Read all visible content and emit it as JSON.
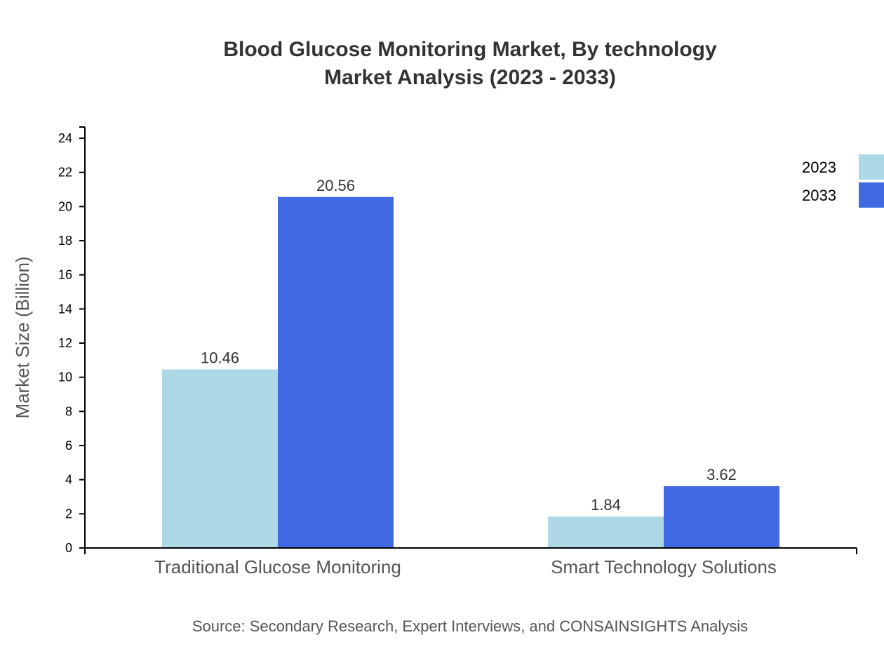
{
  "chart_data": {
    "type": "bar",
    "title": "Blood Glucose Monitoring Market, By technology",
    "subtitle": "Market Analysis (2023 - 2033)",
    "xlabel": "",
    "ylabel": "Market Size (Billion)",
    "categories": [
      "Traditional Glucose Monitoring",
      "Smart Technology Solutions"
    ],
    "series": [
      {
        "name": "2023",
        "color": "#add8e6",
        "values": [
          10.46,
          1.84
        ]
      },
      {
        "name": "2033",
        "color": "#4169e1",
        "values": [
          20.56,
          3.62
        ]
      }
    ],
    "ylim": [
      0,
      24.66
    ],
    "yticks": [
      0,
      2,
      4,
      6,
      8,
      10,
      12,
      14,
      16,
      18,
      20,
      22,
      24
    ],
    "grid": false,
    "legend": "top-right",
    "source": "Source: Secondary Research, Expert Interviews, and CONSAINSIGHTS Analysis"
  }
}
